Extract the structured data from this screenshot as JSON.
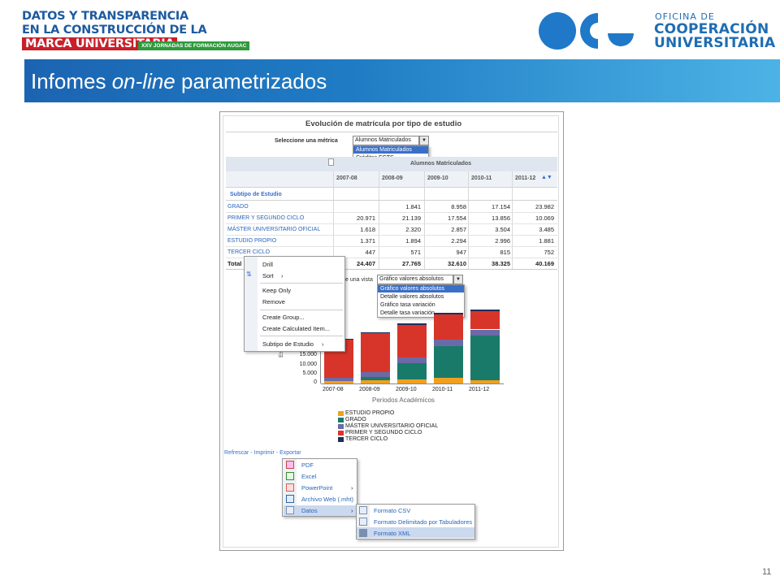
{
  "header": {
    "line1": "DATOS Y TRANSPARENCIA",
    "line2": "EN LA CONSTRUCCIÓN DE LA",
    "line3": "MARCA UNIVERSITARIA",
    "tagline": "XXV JORNADAS DE FORMACIÓN AUGAC",
    "org_line1": "OFICINA DE",
    "org_line2": "COOPERACIÓN",
    "org_line3": "UNIVERSITARIA"
  },
  "slide": {
    "title_a": "Infomes ",
    "title_b": "on-line",
    "title_c": " parametrizados",
    "page_number": "11"
  },
  "report": {
    "title": "Evolución de matrícula por tipo de estudio",
    "metric_label": "Seleccione una métrica",
    "metric_selected": "Alumnos Matriculados",
    "metric_options": [
      "Alumnos Matriculados",
      "Créditos ECTS"
    ],
    "column_group": "Alumnos Matriculados",
    "years": [
      "2007-08",
      "2008-09",
      "2009-10",
      "2010-11",
      "2011-12"
    ],
    "row_header": "Subtipo de Estudio",
    "rows": [
      {
        "label": "GRADO",
        "values": [
          "",
          "1.841",
          "8.958",
          "17.154",
          "23.982"
        ]
      },
      {
        "label": "PRIMER Y SEGUNDO CICLO",
        "values": [
          "20.971",
          "21.139",
          "17.554",
          "13.856",
          "10.069"
        ]
      },
      {
        "label": "MÁSTER UNIVERSITARIO OFICIAL",
        "values": [
          "1.618",
          "2.320",
          "2.857",
          "3.504",
          "3.485"
        ]
      },
      {
        "label": "ESTUDIO PROPIO",
        "values": [
          "1.371",
          "1.894",
          "2.294",
          "2.996",
          "1.881"
        ]
      },
      {
        "label": "TERCER CICLO",
        "values": [
          "447",
          "571",
          "947",
          "815",
          "752"
        ]
      }
    ],
    "total_label": "Total",
    "total_values": [
      "24.407",
      "27.765",
      "32.610",
      "38.325",
      "40.169"
    ],
    "view_label": "e una vista",
    "view_selected": "Gráfico valores absolutos",
    "view_options": [
      "Gráfico valores absolutos",
      "Detalle valores absolutos",
      "Gráfico tasa variación",
      "Detalle tasa variación"
    ],
    "context_menu": [
      "Drill",
      "Sort",
      "Keep Only",
      "Remove",
      "Create Group...",
      "Create Calculated Item...",
      "Subtipo de Estudio"
    ],
    "footer_links": [
      "Refrescar",
      "Imprimir",
      "Exportar"
    ],
    "export_menu": [
      "PDF",
      "Excel",
      "PowerPoint",
      "Archivo Web (.mht)",
      "Datos"
    ],
    "data_submenu": [
      "Formato CSV",
      "Formato Delimitado por Tabuladores",
      "Formato XML"
    ]
  },
  "chart_data": {
    "type": "bar",
    "stacked": true,
    "categories": [
      "2007-08",
      "2008-09",
      "2009-10",
      "2010-11",
      "2011-12"
    ],
    "series": [
      {
        "name": "ESTUDIO PROPIO",
        "color": "#f0a020",
        "values": [
          1371,
          1894,
          2294,
          2996,
          1881
        ]
      },
      {
        "name": "GRADO",
        "color": "#1a7a6a",
        "values": [
          0,
          1841,
          8958,
          17154,
          23982
        ]
      },
      {
        "name": "MÁSTER UNIVERSITARIO OFICIAL",
        "color": "#6a6aa8",
        "values": [
          1618,
          2320,
          2857,
          3504,
          3485
        ]
      },
      {
        "name": "PRIMER Y SEGUNDO CICLO",
        "color": "#d8352a",
        "values": [
          20971,
          21139,
          17554,
          13856,
          10069
        ]
      },
      {
        "name": "TERCER CICLO",
        "color": "#1e2e5a",
        "values": [
          447,
          571,
          947,
          815,
          752
        ]
      }
    ],
    "ylabel": "Estudiant",
    "xlabel": "Periodos Académicos",
    "y_ticks": [
      "15.000",
      "10.000",
      "5.000",
      "0"
    ],
    "ylim": [
      0,
      45000
    ],
    "legend_position": "bottom"
  }
}
